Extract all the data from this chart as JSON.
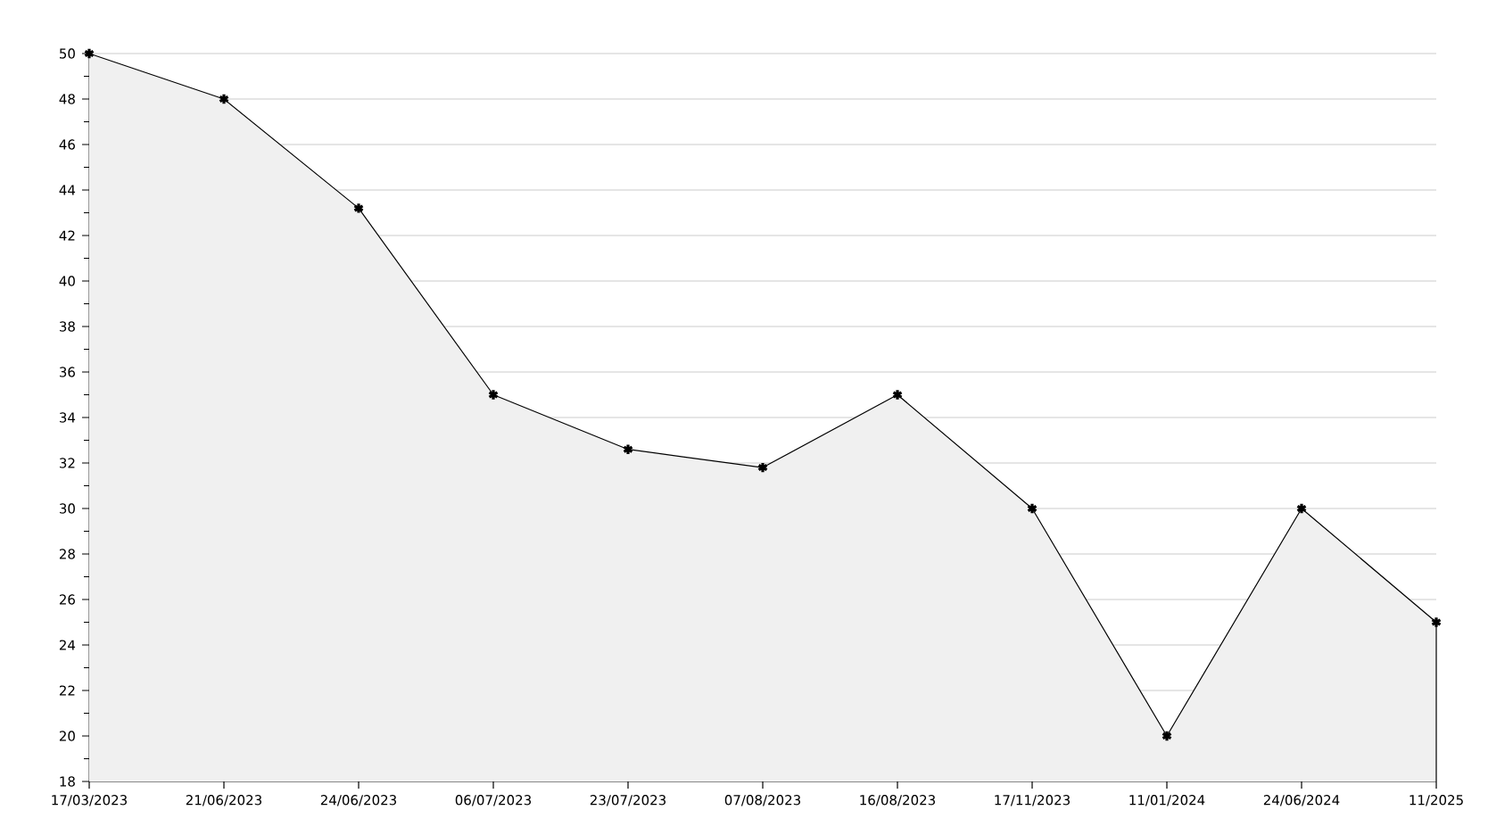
{
  "chart_data": {
    "type": "area",
    "categories": [
      "17/03/2023",
      "21/06/2023",
      "24/06/2023",
      "06/07/2023",
      "23/07/2023",
      "07/08/2023",
      "16/08/2023",
      "17/11/2023",
      "11/01/2024",
      "24/06/2024",
      "11/2025"
    ],
    "series": [
      {
        "color": "#000000",
        "values": [
          50,
          48,
          43.2,
          35,
          32.6,
          31.8,
          35,
          30,
          20,
          30,
          25
        ]
      }
    ],
    "ylim": [
      18,
      50
    ],
    "yticks": [
      18,
      20,
      22,
      24,
      26,
      28,
      30,
      32,
      34,
      36,
      38,
      40,
      42,
      44,
      46,
      48,
      50
    ],
    "grid": "y",
    "marker": "cross",
    "line_style": "solid"
  }
}
